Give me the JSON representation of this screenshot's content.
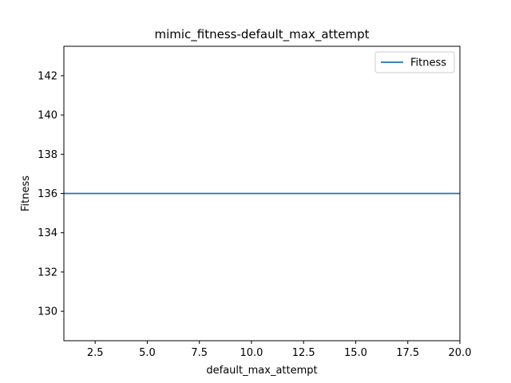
{
  "chart_data": {
    "type": "line",
    "title": "mimic_fitness-default_max_attempt",
    "xlabel": "default_max_attempt",
    "ylabel": "Fitness",
    "xlim": [
      1,
      20
    ],
    "ylim": [
      128.5,
      143.5
    ],
    "x_ticks": [
      2.5,
      5.0,
      7.5,
      10.0,
      12.5,
      15.0,
      17.5,
      20.0
    ],
    "x_tick_labels": [
      "2.5",
      "5.0",
      "7.5",
      "10.0",
      "12.5",
      "15.0",
      "17.5",
      "20.0"
    ],
    "y_ticks": [
      130,
      132,
      134,
      136,
      138,
      140,
      142
    ],
    "y_tick_labels": [
      "130",
      "132",
      "134",
      "136",
      "138",
      "140",
      "142"
    ],
    "grid": false,
    "legend_position": "top-right",
    "series": [
      {
        "name": "Fitness",
        "color": "#1f77b4",
        "x": [
          1,
          20
        ],
        "y": [
          136,
          136
        ]
      }
    ]
  }
}
